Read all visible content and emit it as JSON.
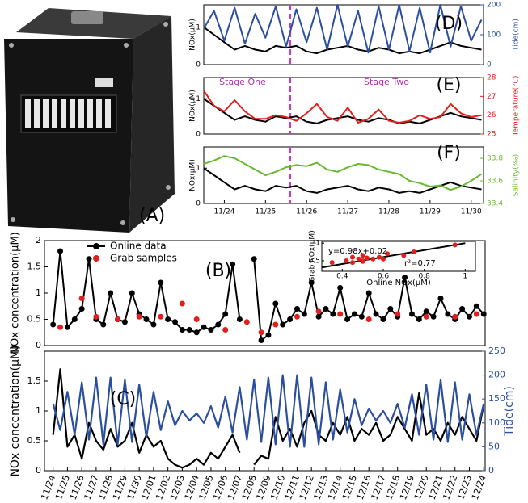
{
  "chart_data": [
    {
      "type": "image",
      "label": "(A)"
    },
    {
      "type": "line",
      "label": "(D)",
      "ylabel": "NOx(μM)",
      "y2label": "Tide(cm)",
      "x": [
        23.5,
        23.75,
        24,
        24.25,
        24.5,
        24.75,
        25,
        25.25,
        25.5,
        25.75,
        26,
        26.25,
        26.5,
        26.75,
        27,
        27.25,
        27.5,
        27.75,
        28,
        28.25,
        28.5,
        28.75,
        29,
        29.25,
        29.5,
        29.75,
        30,
        30.25
      ],
      "xlim": [
        23.5,
        30.3
      ],
      "ylim": [
        0,
        1.6
      ],
      "yticks": [
        0,
        1
      ],
      "y2lim": [
        0,
        200
      ],
      "y2ticks": [
        0,
        100,
        200
      ],
      "divider_x": 25.6,
      "series": [
        {
          "color": "#000000",
          "values": [
            1.0,
            0.8,
            0.6,
            0.4,
            0.5,
            0.4,
            0.35,
            0.5,
            0.45,
            0.5,
            0.35,
            0.3,
            0.4,
            0.45,
            0.5,
            0.4,
            0.35,
            0.45,
            0.4,
            0.3,
            0.35,
            0.3,
            0.4,
            0.5,
            0.6,
            0.5,
            0.45,
            0.4
          ]
        },
        {
          "color": "#2b4f9e",
          "axis": "y2",
          "values": [
            120,
            180,
            80,
            190,
            70,
            170,
            90,
            195,
            60,
            185,
            75,
            190,
            50,
            200,
            60,
            180,
            40,
            195,
            50,
            200,
            45,
            190,
            40,
            200,
            60,
            195,
            80,
            150
          ]
        }
      ]
    },
    {
      "type": "line",
      "label": "(E)",
      "ylabel": "NOx(μM)",
      "y2label": "Temperature(°C)",
      "annotations": [
        "Stage One",
        "Stage Two"
      ],
      "x": [
        23.5,
        23.75,
        24,
        24.25,
        24.5,
        24.75,
        25,
        25.25,
        25.5,
        25.75,
        26,
        26.25,
        26.5,
        26.75,
        27,
        27.25,
        27.5,
        27.75,
        28,
        28.25,
        28.5,
        28.75,
        29,
        29.25,
        29.5,
        29.75,
        30,
        30.25
      ],
      "xlim": [
        23.5,
        30.3
      ],
      "ylim": [
        0,
        1.6
      ],
      "yticks": [
        0,
        1
      ],
      "y2lim": [
        25,
        28
      ],
      "y2ticks": [
        25,
        26,
        27,
        28
      ],
      "divider_x": 25.6,
      "series": [
        {
          "color": "#000000",
          "values": [
            1.0,
            0.8,
            0.6,
            0.4,
            0.5,
            0.4,
            0.35,
            0.5,
            0.45,
            0.5,
            0.35,
            0.3,
            0.4,
            0.45,
            0.5,
            0.4,
            0.35,
            0.45,
            0.4,
            0.3,
            0.35,
            0.3,
            0.4,
            0.5,
            0.6,
            0.5,
            0.45,
            0.4
          ]
        },
        {
          "color": "#e0201e",
          "axis": "y2",
          "values": [
            27.3,
            26.5,
            26.2,
            26.8,
            26.2,
            25.8,
            25.8,
            26.0,
            25.9,
            25.7,
            26.1,
            26.6,
            25.9,
            25.7,
            26.4,
            25.6,
            25.8,
            26.3,
            25.7,
            25.6,
            25.7,
            26.0,
            25.8,
            25.9,
            26.6,
            26.1,
            25.9,
            26.0
          ]
        }
      ]
    },
    {
      "type": "line",
      "label": "(F)",
      "ylabel": "NOx(μM)",
      "y2label": "Salinity(‰)",
      "x": [
        23.5,
        23.75,
        24,
        24.25,
        24.5,
        24.75,
        25,
        25.25,
        25.5,
        25.75,
        26,
        26.25,
        26.5,
        26.75,
        27,
        27.25,
        27.5,
        27.75,
        28,
        28.25,
        28.5,
        28.75,
        29,
        29.25,
        29.5,
        29.75,
        30,
        30.25
      ],
      "xlim": [
        23.5,
        30.3
      ],
      "ylim": [
        0,
        1.6
      ],
      "yticks": [
        0,
        1
      ],
      "y2lim": [
        33.4,
        33.9
      ],
      "y2ticks": [
        33.4,
        33.6,
        33.8
      ],
      "divider_x": 25.6,
      "xticks": [
        {
          "value": 24,
          "label": "11/24"
        },
        {
          "value": 25,
          "label": "11/25"
        },
        {
          "value": 26,
          "label": "11/26"
        },
        {
          "value": 27,
          "label": "11/27"
        },
        {
          "value": 28,
          "label": "11/28"
        },
        {
          "value": 29,
          "label": "11/29"
        },
        {
          "value": 30,
          "label": "11/30"
        }
      ],
      "series": [
        {
          "color": "#000000",
          "values": [
            1.0,
            0.8,
            0.6,
            0.4,
            0.5,
            0.4,
            0.35,
            0.5,
            0.45,
            0.5,
            0.35,
            0.3,
            0.4,
            0.45,
            0.5,
            0.4,
            0.35,
            0.45,
            0.4,
            0.3,
            0.35,
            0.3,
            0.4,
            0.5,
            0.6,
            0.5,
            0.45,
            0.4
          ]
        },
        {
          "color": "#6ab82e",
          "axis": "y2",
          "values": [
            33.75,
            33.78,
            33.82,
            33.8,
            33.75,
            33.7,
            33.65,
            33.68,
            33.72,
            33.74,
            33.73,
            33.76,
            33.7,
            33.68,
            33.72,
            33.75,
            33.74,
            33.7,
            33.68,
            33.66,
            33.6,
            33.58,
            33.55,
            33.56,
            33.52,
            33.55,
            33.6,
            33.66
          ]
        }
      ]
    },
    {
      "type": "line",
      "label": "(B)",
      "ylabel": "NOx concentration(μM)",
      "xlim": [
        -0.6,
        30.1
      ],
      "ylim": [
        0,
        2
      ],
      "yticks": [
        0,
        0.5,
        1,
        1.5,
        2
      ],
      "series": [
        {
          "name": "Online data",
          "color": "#000000",
          "marker": true,
          "x": [
            0,
            0.5,
            1,
            1.5,
            2,
            2.5,
            3,
            3.5,
            4,
            4.5,
            5,
            5.5,
            6,
            6.5,
            7,
            7.5,
            8,
            8.5,
            9,
            9.5,
            10,
            10.5,
            11,
            11.5,
            12,
            12.5,
            13,
            13.5,
            14,
            14.5,
            15,
            15.5,
            16,
            16.5,
            17,
            17.5,
            18,
            18.5,
            19,
            19.5,
            20,
            20.5,
            21,
            21.5,
            22,
            22.5,
            23,
            23.5,
            24,
            24.5,
            25,
            25.5,
            26,
            26.5,
            27,
            27.5,
            28,
            28.5,
            29,
            29.5,
            30
          ],
          "values": [
            0.4,
            1.8,
            0.35,
            0.5,
            0.7,
            1.65,
            0.5,
            0.4,
            1.0,
            0.5,
            0.45,
            1.0,
            0.6,
            0.5,
            0.4,
            1.2,
            0.5,
            0.45,
            0.3,
            0.3,
            0.25,
            0.35,
            0.3,
            0.4,
            0.6,
            1.55,
            0.5,
            null,
            1.65,
            0.1,
            0.2,
            0.8,
            0.4,
            0.5,
            0.7,
            0.6,
            1.2,
            0.55,
            0.7,
            0.6,
            1.1,
            0.5,
            0.6,
            0.55,
            1.0,
            0.6,
            0.5,
            0.7,
            0.55,
            1.3,
            0.6,
            0.5,
            0.65,
            0.55,
            0.9,
            0.6,
            0.5,
            0.7,
            0.55,
            0.75,
            0.6
          ]
        },
        {
          "name": "Grab samples",
          "color": "#e0201e",
          "marker": true,
          "line": false,
          "x": [
            0.5,
            2,
            3,
            4.5,
            6,
            7.5,
            9,
            10,
            12,
            13.5,
            14.5,
            15.5,
            17,
            18.5,
            20,
            22,
            24,
            26,
            28,
            29.5
          ],
          "values": [
            0.35,
            0.9,
            0.55,
            0.5,
            0.55,
            0.55,
            0.8,
            0.5,
            0.3,
            0.45,
            0.25,
            0.4,
            0.55,
            0.65,
            0.6,
            0.5,
            0.6,
            0.55,
            0.55,
            0.6
          ]
        }
      ],
      "inset": {
        "type": "scatter",
        "xlabel": "Online NOx(μM)",
        "ylabel": "Grab NOx(μM)",
        "annotations": [
          "y=0.98x+0.02",
          "r²=0.77"
        ],
        "xlim": [
          0.3,
          1.05
        ],
        "ylim": [
          0.2,
          1.05
        ],
        "xticks": [
          0.4,
          0.6,
          0.8,
          1
        ],
        "yticks": [
          0.5,
          1
        ],
        "color": "#e0201e",
        "x": [
          0.35,
          0.42,
          0.45,
          0.48,
          0.5,
          0.52,
          0.55,
          0.58,
          0.6,
          0.45,
          0.5,
          0.62,
          0.7,
          0.75,
          0.95,
          0.5
        ],
        "values": [
          0.45,
          0.5,
          0.45,
          0.55,
          0.5,
          0.58,
          0.55,
          0.6,
          0.55,
          0.6,
          0.65,
          0.7,
          0.65,
          0.75,
          0.95,
          0.48
        ],
        "fit_x": [
          0.3,
          1.0
        ],
        "fit_values": [
          0.31,
          1.0
        ]
      }
    },
    {
      "type": "line",
      "label": "(C)",
      "ylabel": "NOx concentration(μM)",
      "y2label": "Tide(cm)",
      "xlim": [
        -0.6,
        30.1
      ],
      "ylim": [
        0,
        2
      ],
      "yticks": [
        0,
        0.5,
        1,
        1.5
      ],
      "y2lim": [
        0,
        250
      ],
      "y2ticks": [
        0,
        50,
        100,
        150,
        200,
        250
      ],
      "x": [
        0,
        0.5,
        1,
        1.5,
        2,
        2.5,
        3,
        3.5,
        4,
        4.5,
        5,
        5.5,
        6,
        6.5,
        7,
        7.5,
        8,
        8.5,
        9,
        9.5,
        10,
        10.5,
        11,
        11.5,
        12,
        12.5,
        13,
        13.5,
        14,
        14.5,
        15,
        15.5,
        16,
        16.5,
        17,
        17.5,
        18,
        18.5,
        19,
        19.5,
        20,
        20.5,
        21,
        21.5,
        22,
        22.5,
        23,
        23.5,
        24,
        24.5,
        25,
        25.5,
        26,
        26.5,
        27,
        27.5,
        28,
        28.5,
        29,
        29.5,
        30
      ],
      "xticks": [
        {
          "value": 0,
          "label": "11/24"
        },
        {
          "value": 1,
          "label": "11/25"
        },
        {
          "value": 2,
          "label": "11/26"
        },
        {
          "value": 3,
          "label": "11/27"
        },
        {
          "value": 4,
          "label": "11/28"
        },
        {
          "value": 5,
          "label": "11/29"
        },
        {
          "value": 6,
          "label": "11/30"
        },
        {
          "value": 7,
          "label": "12/01"
        },
        {
          "value": 8,
          "label": "12/02"
        },
        {
          "value": 9,
          "label": "12/03"
        },
        {
          "value": 10,
          "label": "12/04"
        },
        {
          "value": 11,
          "label": "12/05"
        },
        {
          "value": 12,
          "label": "12/06"
        },
        {
          "value": 13,
          "label": "12/07"
        },
        {
          "value": 14,
          "label": "12/08"
        },
        {
          "value": 15,
          "label": "12/09"
        },
        {
          "value": 16,
          "label": "12/10"
        },
        {
          "value": 17,
          "label": "12/11"
        },
        {
          "value": 18,
          "label": "12/12"
        },
        {
          "value": 19,
          "label": "12/13"
        },
        {
          "value": 20,
          "label": "12/14"
        },
        {
          "value": 21,
          "label": "12/15"
        },
        {
          "value": 22,
          "label": "12/16"
        },
        {
          "value": 23,
          "label": "12/17"
        },
        {
          "value": 24,
          "label": "12/18"
        },
        {
          "value": 25,
          "label": "12/19"
        },
        {
          "value": 26,
          "label": "12/20"
        },
        {
          "value": 27,
          "label": "12/21"
        },
        {
          "value": 28,
          "label": "12/22"
        },
        {
          "value": 29,
          "label": "12/23"
        },
        {
          "value": 30,
          "label": "12/24"
        }
      ],
      "series": [
        {
          "color": "#000000",
          "values": [
            0.6,
            1.7,
            0.4,
            0.6,
            0.2,
            0.8,
            0.5,
            0.35,
            0.7,
            0.4,
            0.5,
            0.8,
            0.3,
            0.6,
            0.4,
            0.5,
            0.2,
            0.1,
            0.05,
            0.1,
            0.2,
            0.1,
            0.3,
            0.2,
            0.4,
            0.6,
            0.3,
            null,
            0.1,
            0.25,
            0.2,
            0.9,
            0.5,
            0.7,
            0.4,
            0.8,
            1.0,
            0.6,
            0.5,
            0.8,
            0.6,
            0.9,
            0.5,
            0.7,
            0.6,
            0.8,
            0.5,
            0.6,
            0.9,
            0.7,
            0.5,
            1.3,
            0.6,
            0.7,
            0.5,
            0.8,
            0.6,
            0.9,
            0.7,
            0.5,
            1.1
          ]
        },
        {
          "color": "#2b4f9e",
          "axis": "y2",
          "values": [
            140,
            85,
            165,
            75,
            185,
            65,
            195,
            55,
            195,
            55,
            190,
            60,
            180,
            70,
            165,
            85,
            145,
            95,
            125,
            105,
            120,
            100,
            135,
            90,
            155,
            80,
            175,
            65,
            190,
            60,
            195,
            55,
            200,
            50,
            200,
            50,
            195,
            55,
            185,
            65,
            170,
            80,
            150,
            95,
            130,
            105,
            125,
            100,
            140,
            90,
            160,
            75,
            180,
            65,
            190,
            60,
            185,
            65,
            160,
            75,
            140
          ]
        }
      ]
    }
  ]
}
